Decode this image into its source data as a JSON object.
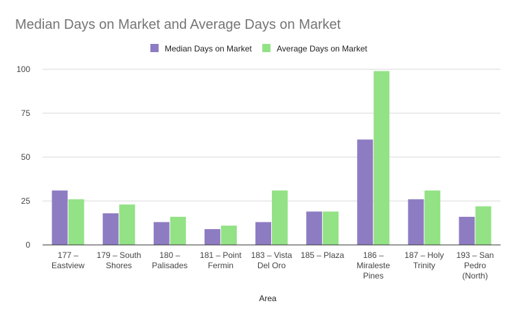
{
  "chart_data": {
    "type": "bar",
    "title": "Median Days on Market and Average Days on Market",
    "xlabel": "Area",
    "ylabel": "",
    "ylim": [
      0,
      100
    ],
    "yticks": [
      0,
      25,
      50,
      75,
      100
    ],
    "grid": true,
    "legend_position": "top",
    "categories": [
      [
        "177 –",
        "Eastview"
      ],
      [
        "179 – South",
        "Shores"
      ],
      [
        "180 –",
        "Palisades"
      ],
      [
        "181 – Point",
        "Fermin"
      ],
      [
        "183 – Vista",
        "Del Oro"
      ],
      [
        "185 – Plaza"
      ],
      [
        "186 –",
        "Miraleste",
        "Pines"
      ],
      [
        "187 – Holy",
        "Trinity"
      ],
      [
        "193 – San",
        "Pedro",
        "(North)"
      ]
    ],
    "series": [
      {
        "name": "Median Days on Market",
        "color": "#8e7cc3",
        "values": [
          31,
          18,
          13,
          9,
          13,
          19,
          60,
          26,
          16
        ]
      },
      {
        "name": "Average Days on Market",
        "color": "#93e286",
        "values": [
          26,
          23,
          16,
          11,
          31,
          19,
          99,
          31,
          22
        ]
      }
    ]
  }
}
